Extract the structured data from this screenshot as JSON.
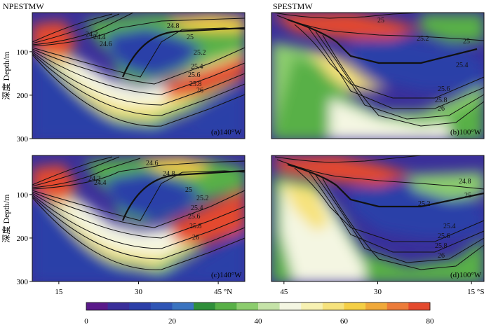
{
  "chart_data": {
    "type": "heatmap",
    "column_titles": [
      "NPESTMW",
      "SPESTMW"
    ],
    "ylabel": "深度 Depth/m",
    "y_ticks": [
      "100",
      "200",
      "300"
    ],
    "ylim": [
      300,
      10
    ],
    "panels": [
      {
        "id": "a",
        "label": "(a)140°W",
        "xlim": [
          10,
          50
        ],
        "x_ticks": [],
        "contour_labels": [
          "24.2",
          "24.4",
          "24.6",
          "24.8",
          "25",
          "25.2",
          "25.4",
          "25.6",
          "25.8",
          "26"
        ]
      },
      {
        "id": "b",
        "label": "(b)100°W",
        "xlim": [
          47,
          13
        ],
        "x_ticks": [],
        "contour_labels": [
          "25",
          "25.2",
          "25",
          "25.4",
          "25.6",
          "25.8",
          "26"
        ]
      },
      {
        "id": "c",
        "label": "(c)140°W",
        "xlim": [
          10,
          50
        ],
        "x_ticks": [
          "15",
          "30",
          "45"
        ],
        "x_unit": "°N",
        "contour_labels": [
          "24.2",
          "24.4",
          "24.6",
          "24.8",
          "25",
          "25.2",
          "25.4",
          "25.6",
          "25.8",
          "26"
        ]
      },
      {
        "id": "d",
        "label": "(d)100°W",
        "xlim": [
          47,
          13
        ],
        "x_ticks": [
          "45",
          "30",
          "15"
        ],
        "x_unit": "°S",
        "contour_labels": [
          "24.8",
          "25",
          "25.2",
          "25.4",
          "25.6",
          "25.8",
          "26"
        ]
      }
    ],
    "colorbar": {
      "ticks": [
        "0",
        "20",
        "40",
        "60",
        "80"
      ],
      "range": [
        0,
        80
      ],
      "colors": [
        "#5a1a8a",
        "#3a2f9a",
        "#2c3fa8",
        "#2f55b5",
        "#3b74c0",
        "#2f8f3a",
        "#58b047",
        "#8ccd6e",
        "#c5e3a8",
        "#f4f6e2",
        "#f7f1b2",
        "#f6e27c",
        "#f5cf45",
        "#f0a93a",
        "#ec7c3a",
        "#e44a2e"
      ]
    }
  }
}
